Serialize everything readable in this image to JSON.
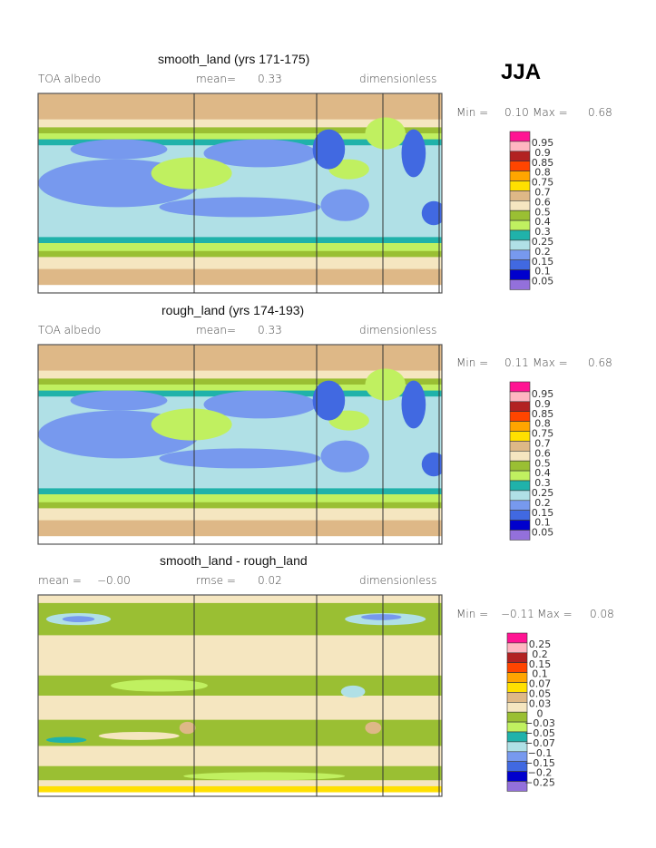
{
  "season": "JJA",
  "colors": [
    "#ff1493",
    "#ffb6c1",
    "#b22222",
    "#ff4500",
    "#ffa500",
    "#ffe000",
    "#deb887",
    "#f5e6c0",
    "#9abf33",
    "#c0f060",
    "#20b2aa",
    "#b0e0e6",
    "#7799ee",
    "#4169e1",
    "#0000cd",
    "#9370db"
  ],
  "chart_data": [
    {
      "type": "heatmap",
      "title": "smooth_land (yrs 171-175)",
      "left_label": "TOA albedo",
      "stat_label": "mean=",
      "stat_value": "0.33",
      "units": "dimensionless",
      "min_label": "Min =",
      "min": "0.10",
      "max_label": "Max =",
      "max": "0.68",
      "levels": [
        "0.95",
        "0.9",
        "0.85",
        "0.8",
        "0.75",
        "0.7",
        "0.6",
        "0.5",
        "0.4",
        "0.3",
        "0.25",
        "0.2",
        "0.15",
        "0.1",
        "0.05"
      ]
    },
    {
      "type": "heatmap",
      "title": "rough_land (yrs 174-193)",
      "left_label": "TOA albedo",
      "stat_label": "mean=",
      "stat_value": "0.33",
      "units": "dimensionless",
      "min_label": "Min =",
      "min": "0.11",
      "max_label": "Max =",
      "max": "0.68",
      "levels": [
        "0.95",
        "0.9",
        "0.85",
        "0.8",
        "0.75",
        "0.7",
        "0.6",
        "0.5",
        "0.4",
        "0.3",
        "0.25",
        "0.2",
        "0.15",
        "0.1",
        "0.05"
      ]
    },
    {
      "type": "heatmap",
      "title": "smooth_land - rough_land",
      "left_label": "mean =",
      "left_value": "−0.00",
      "stat_label": "rmse =",
      "stat_value": "0.02",
      "units": "dimensionless",
      "min_label": "Min =",
      "min": "−0.11",
      "max_label": "Max =",
      "max": "0.08",
      "levels": [
        "0.25",
        "0.2",
        "0.15",
        "0.1",
        "0.07",
        "0.05",
        "0.03",
        "0",
        "−0.03",
        "−0.05",
        "−0.07",
        "−0.1",
        "−0.15",
        "−0.2",
        "−0.25"
      ]
    }
  ]
}
